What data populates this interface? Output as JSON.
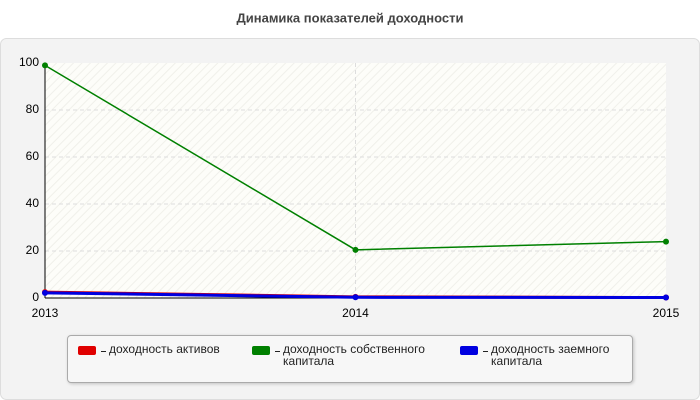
{
  "chart_data": {
    "type": "line",
    "title": "Динамика показателей доходности",
    "x": [
      2013,
      2014,
      2015
    ],
    "xlim": [
      2013,
      2015
    ],
    "xticks": [
      2013,
      2014,
      2015
    ],
    "ylim": [
      0,
      100
    ],
    "yticks": [
      0,
      20,
      40,
      60,
      80,
      100
    ],
    "grid": true,
    "series": [
      {
        "name": "доходность активов",
        "color": "#e00000",
        "values": [
          2.5,
          0.5,
          0.2
        ]
      },
      {
        "name": "доходность собственного капитала",
        "color": "#008000",
        "values": [
          99,
          20.5,
          24
        ]
      },
      {
        "name": "доходность заемного капитала",
        "color": "#0000e0",
        "values": [
          2.2,
          0.3,
          0.2
        ]
      }
    ]
  }
}
